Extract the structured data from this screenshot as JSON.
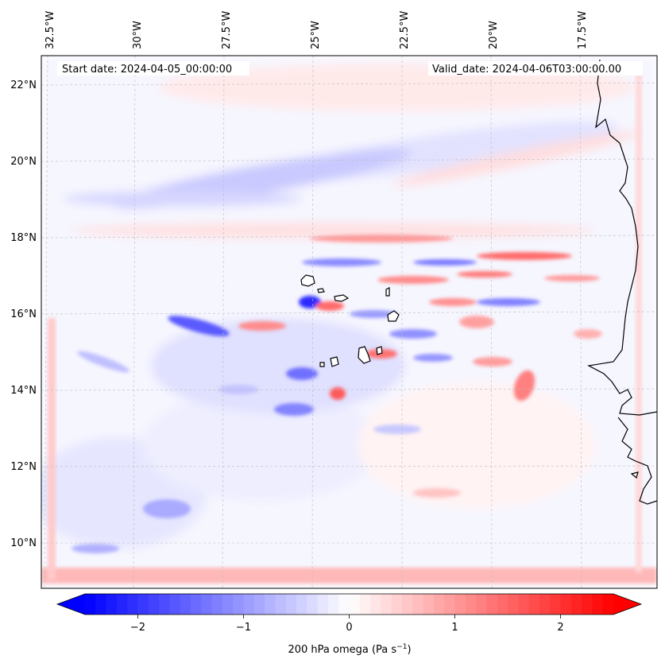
{
  "map": {
    "start_date": "Start date: 2024-04-05_00:00:00",
    "valid_date": "Valid_date: 2024-04-06T03:00:00.00",
    "lon_ticks": [
      "32.5°W",
      "30°W",
      "27.5°W",
      "25°W",
      "22.5°W",
      "20°W",
      "17.5°W"
    ],
    "lat_ticks": [
      "22°N",
      "20°N",
      "18°N",
      "16°N",
      "14°N",
      "12°N",
      "10°N"
    ],
    "extent": {
      "lon": [
        -32.7,
        -15.7
      ],
      "lat": [
        8.9,
        22.7
      ]
    }
  },
  "colorbar": {
    "label_main": "200 hPa omega (Pa s",
    "label_exp": "−1",
    "label_close": ")",
    "ticks": [
      {
        "value": -2,
        "label": "−2"
      },
      {
        "value": -1,
        "label": "−1"
      },
      {
        "value": 0,
        "label": "0"
      },
      {
        "value": 1,
        "label": "1"
      },
      {
        "value": 2,
        "label": "2"
      }
    ],
    "vmin": -2.5,
    "vmax": 2.5,
    "colormap": "bwr",
    "colors": {
      "neg": "#0000ff",
      "zero": "#ffffff",
      "pos": "#ff0000"
    }
  }
}
